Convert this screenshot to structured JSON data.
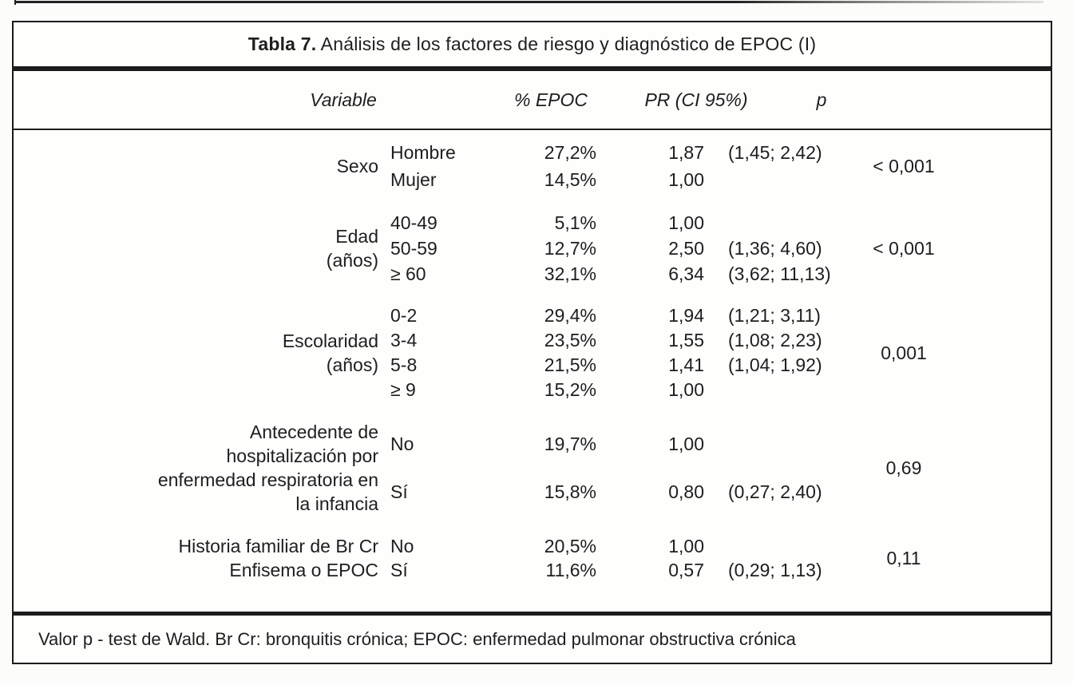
{
  "table": {
    "title": {
      "bold": "Tabla 7.",
      "rest": " Análisis de los factores de riesgo y diagnóstico de EPOC (I)"
    },
    "columns": {
      "variable": "Variable",
      "pct": "% EPOC",
      "pr_ci": "PR (CI 95%)",
      "p": "p"
    },
    "groups": [
      {
        "variable_lines": [
          "Sexo"
        ],
        "p": "< 0,001",
        "rows": [
          {
            "category": "Hombre",
            "pct": "27,2%",
            "pr": "1,87",
            "ci": "(1,45; 2,42)"
          },
          {
            "category": "Mujer",
            "pct": "14,5%",
            "pr": "1,00",
            "ci": ""
          }
        ]
      },
      {
        "variable_lines": [
          "Edad",
          "(años)"
        ],
        "p": "< 0,001",
        "rows": [
          {
            "category": "40-49",
            "pct": "5,1%",
            "pr": "1,00",
            "ci": ""
          },
          {
            "category": "50-59",
            "pct": "12,7%",
            "pr": "2,50",
            "ci": "(1,36; 4,60)"
          },
          {
            "category": "≥ 60",
            "pct": "32,1%",
            "pr": "6,34",
            "ci": "(3,62; 11,13)"
          }
        ]
      },
      {
        "variable_lines": [
          "Escolaridad",
          "(años)"
        ],
        "p": "0,001",
        "rows": [
          {
            "category": "0-2",
            "pct": "29,4%",
            "pr": "1,94",
            "ci": "(1,21; 3,11)"
          },
          {
            "category": "3-4",
            "pct": "23,5%",
            "pr": "1,55",
            "ci": "(1,08; 2,23)"
          },
          {
            "category": "5-8",
            "pct": "21,5%",
            "pr": "1,41",
            "ci": "(1,04; 1,92)"
          },
          {
            "category": "≥ 9",
            "pct": "15,2%",
            "pr": "1,00",
            "ci": ""
          }
        ]
      },
      {
        "variable_lines": [
          "Antecedente de",
          "hospitalización por",
          "enfermedad respiratoria en",
          "la infancia"
        ],
        "p": "0,69",
        "rows": [
          {
            "category": "No",
            "pct": "19,7%",
            "pr": "1,00",
            "ci": ""
          },
          {
            "category": "Sí",
            "pct": "15,8%",
            "pr": "0,80",
            "ci": "(0,27; 2,40)"
          }
        ]
      },
      {
        "variable_lines": [
          "Historia familiar de Br Cr",
          "Enfisema o EPOC"
        ],
        "p": "0,11",
        "rows": [
          {
            "category": "No",
            "pct": "20,5%",
            "pr": "1,00",
            "ci": ""
          },
          {
            "category": "Sí",
            "pct": "11,6%",
            "pr": "0,57",
            "ci": "(0,29; 1,13)"
          }
        ]
      }
    ],
    "footnote": "Valor p - test de Wald. Br Cr: bronquitis crónica; EPOC: enfermedad pulmonar obstructiva crónica"
  }
}
